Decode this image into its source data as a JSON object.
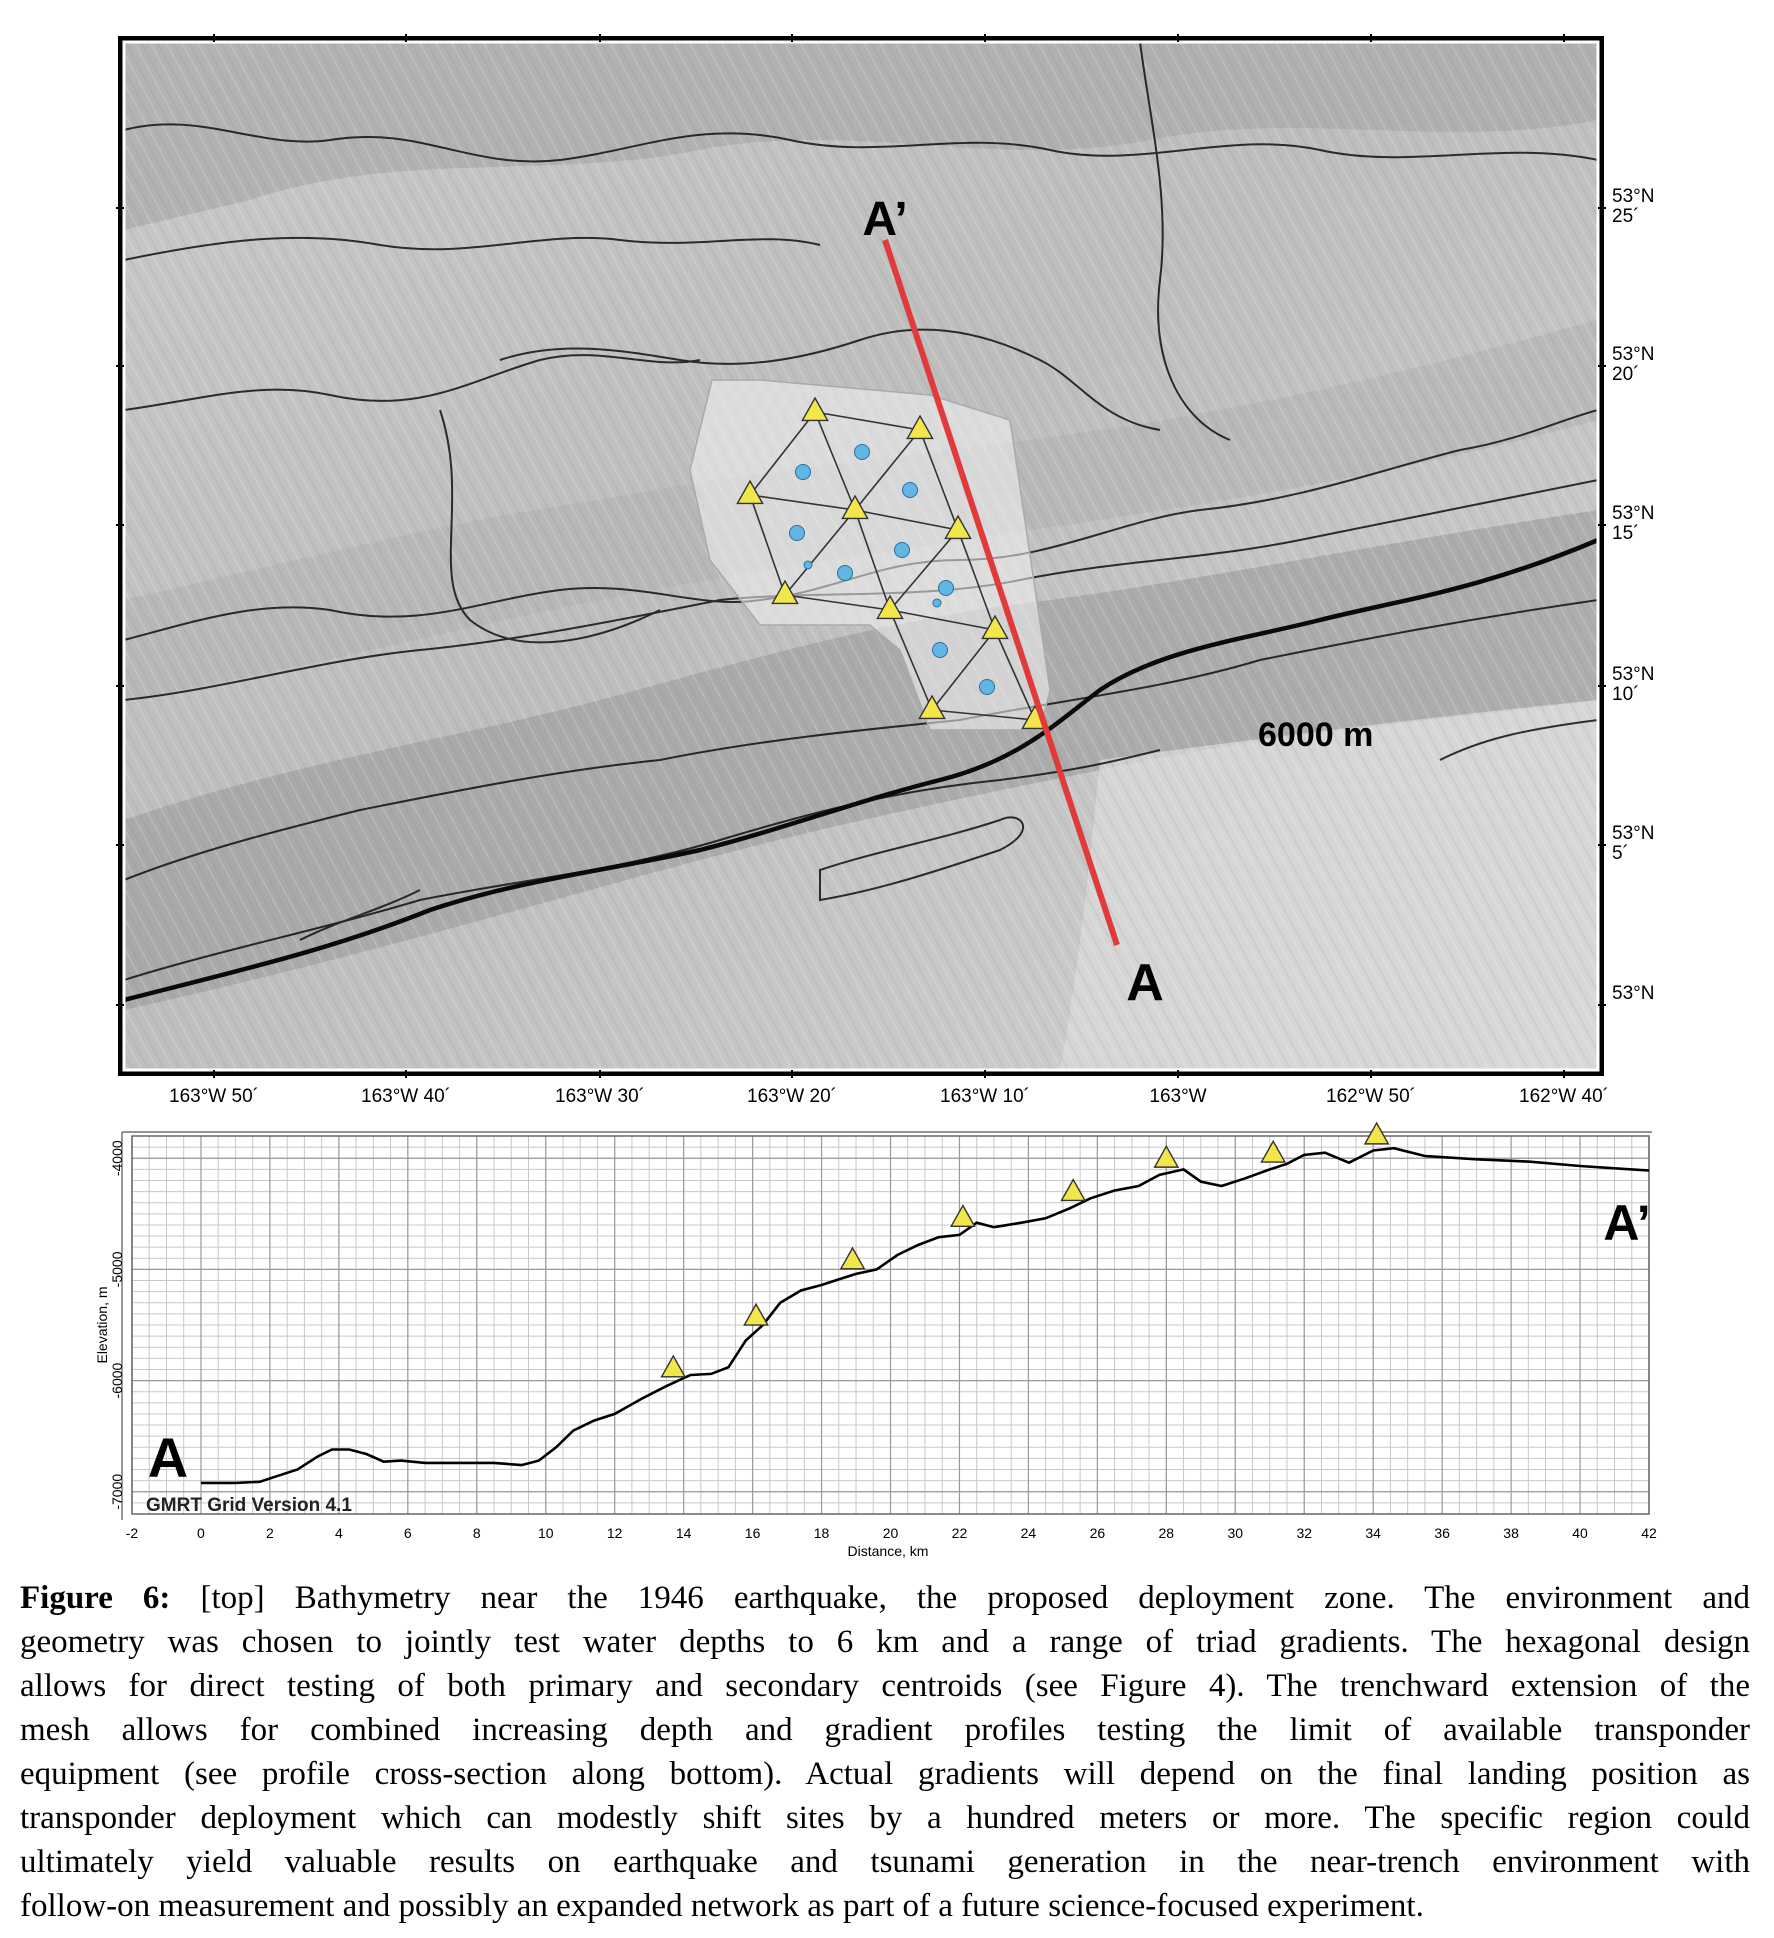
{
  "map": {
    "lat_labels": [
      {
        "deg": "53°N",
        "min": "25´"
      },
      {
        "deg": "53°N",
        "min": "20´"
      },
      {
        "deg": "53°N",
        "min": "15´"
      },
      {
        "deg": "53°N",
        "min": "10´"
      },
      {
        "deg": "53°N",
        "min": "5´"
      },
      {
        "deg": "53°N",
        "min": ""
      }
    ],
    "lon_labels": [
      "163°W 50´",
      "163°W 40´",
      "163°W 30´",
      "163°W 20´",
      "163°W 10´",
      "163°W",
      "162°W 50´",
      "162°W 40´"
    ],
    "profile_start_label": "A",
    "profile_end_label": "A’",
    "depth_label": "6000 m",
    "profile_line_color": "#e03a3a",
    "transponder_color": "#f2e64a",
    "centroid_color": "#62b6e6",
    "transponder_icon": "triangle-icon",
    "centroid_icon": "circle-icon"
  },
  "chart_data": {
    "type": "line",
    "title": "",
    "xlabel": "Distance, km",
    "ylabel": "Elevation, m",
    "xlim": [
      -2,
      42
    ],
    "ylim": [
      -7200,
      -3800
    ],
    "x_ticks": [
      -2,
      0,
      2,
      4,
      6,
      8,
      10,
      12,
      14,
      16,
      18,
      20,
      22,
      24,
      26,
      28,
      30,
      32,
      34,
      36,
      38,
      40,
      42
    ],
    "y_ticks": [
      -7000,
      -6000,
      -5000,
      -4000
    ],
    "grid": true,
    "series": [
      {
        "x": [
          0,
          1,
          1.7,
          2.2,
          2.8,
          3.4,
          3.8,
          4.3,
          4.8,
          5.3,
          5.8,
          6.5,
          7.5,
          8.5,
          9.3,
          9.8,
          10.3,
          10.8,
          11.4,
          12,
          12.8,
          13.5,
          14.2,
          14.8,
          15.3,
          15.8,
          16.3,
          16.8,
          17.4,
          18,
          18.5,
          19,
          19.6,
          20.2,
          20.8,
          21.4,
          22,
          22.5,
          23,
          23.8,
          24.5,
          25.2,
          25.8,
          26.5,
          27.2,
          27.8,
          28.5,
          29,
          29.6,
          30.3,
          31,
          31.5,
          32,
          32.6,
          33.3,
          34,
          34.6,
          35.5,
          37,
          38.5,
          40,
          41.5,
          42
        ],
        "y": [
          -6920,
          -6920,
          -6910,
          -6860,
          -6800,
          -6680,
          -6620,
          -6620,
          -6660,
          -6730,
          -6720,
          -6740,
          -6740,
          -6740,
          -6760,
          -6720,
          -6600,
          -6450,
          -6360,
          -6300,
          -6160,
          -6050,
          -5950,
          -5940,
          -5880,
          -5640,
          -5500,
          -5300,
          -5190,
          -5140,
          -5090,
          -5040,
          -5000,
          -4870,
          -4780,
          -4710,
          -4690,
          -4580,
          -4620,
          -4580,
          -4540,
          -4450,
          -4360,
          -4290,
          -4250,
          -4150,
          -4100,
          -4210,
          -4250,
          -4180,
          -4100,
          -4050,
          -3970,
          -3950,
          -4040,
          -3930,
          -3910,
          -3980,
          -4010,
          -4030,
          -4070,
          -4100,
          -4110
        ]
      }
    ],
    "transponders_x": [
      13.7,
      16.1,
      18.9,
      22.1,
      25.3,
      28,
      31.1,
      34.1
    ],
    "start_label": "A",
    "end_label": "A’",
    "source_label": "GMRT Grid Version 4.1"
  },
  "caption": {
    "label": "Figure 6:",
    "lines": [
      "[top] Bathymetry near the 1946 earthquake, the proposed deployment zone. The environment and",
      "geometry was chosen to jointly test water depths to 6 km and a range of triad gradients. The hexagonal design",
      "allows for direct testing of both primary and secondary centroids (see Figure 4). The trenchward extension of the",
      "mesh allows for combined increasing depth and gradient profiles testing the limit of available transponder",
      "equipment (see profile cross-section along bottom). Actual gradients will depend on the final landing position as",
      "transponder deployment which can modestly shift sites by a hundred meters or more.  The specific region could",
      "ultimately yield valuable results on earthquake and tsunami generation in the near-trench environment with",
      "follow-on measurement and possibly an expanded network as part of a future science-focused experiment."
    ]
  }
}
